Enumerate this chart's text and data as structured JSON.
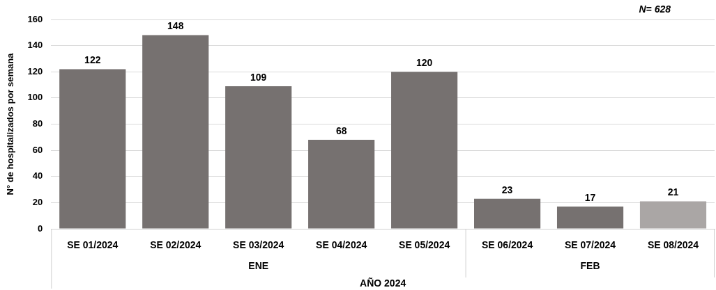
{
  "chart_data": {
    "type": "bar",
    "categories": [
      "SE 01/2024",
      "SE 02/2024",
      "SE 03/2024",
      "SE 04/2024",
      "SE 05/2024",
      "SE 06/2024",
      "SE 07/2024",
      "SE 08/2024"
    ],
    "values": [
      122,
      148,
      109,
      68,
      120,
      23,
      17,
      21
    ],
    "colors": [
      "#767170",
      "#767170",
      "#767170",
      "#767170",
      "#767170",
      "#767170",
      "#767170",
      "#aaa6a5"
    ],
    "ylabel": "N° de hospitalizados por semana",
    "xlabel": "AÑO 2024",
    "ylim": [
      0,
      160
    ],
    "yticks": [
      0,
      20,
      40,
      60,
      80,
      100,
      120,
      140,
      160
    ],
    "grid": "y",
    "legend": false,
    "data_labels": true,
    "annotations": [
      "ENE",
      "FEB",
      "N= 628"
    ]
  }
}
